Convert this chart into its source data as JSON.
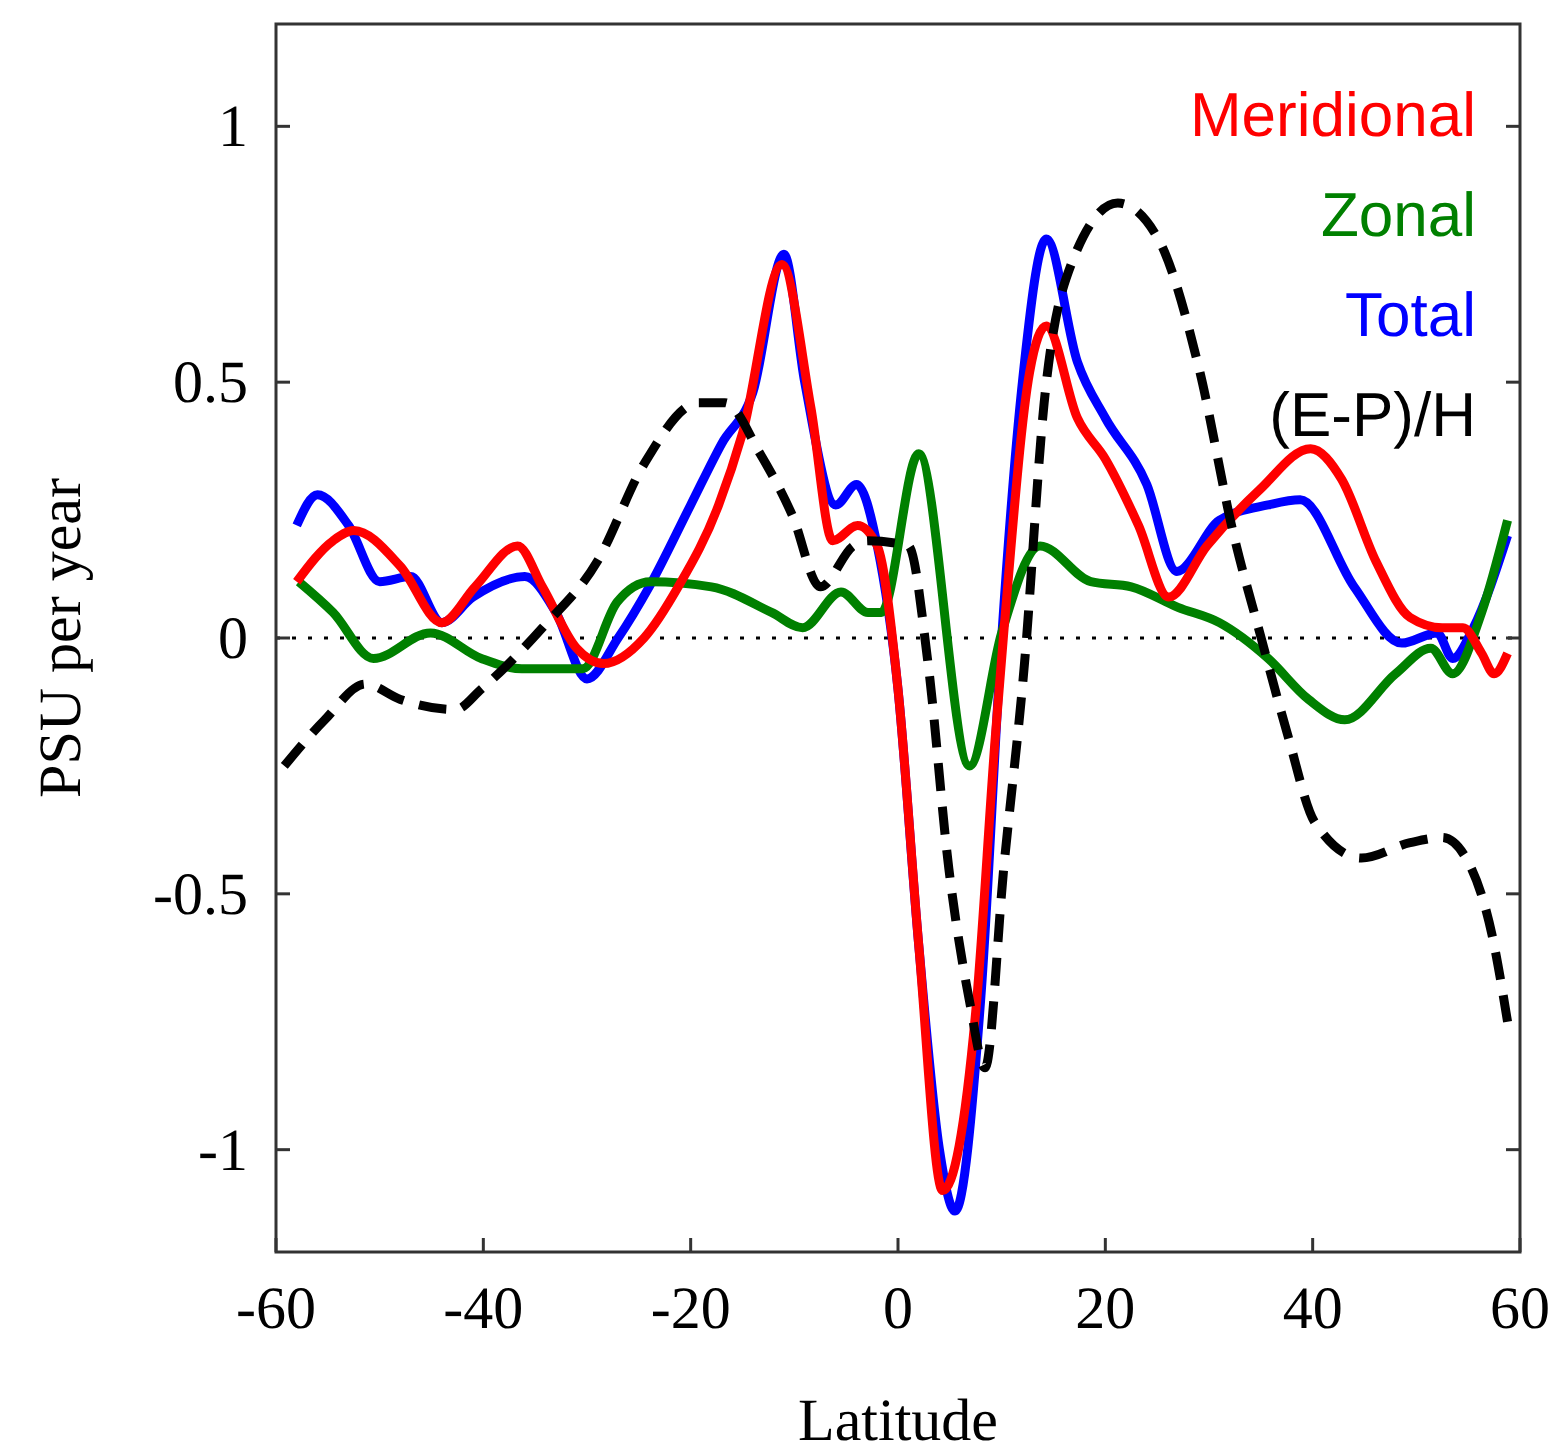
{
  "chart_data": {
    "type": "line",
    "xlabel": "Latitude",
    "ylabel": "PSU per year",
    "xlim": [
      -60,
      60
    ],
    "ylim": [
      -1.2,
      1.2
    ],
    "xticks": [
      -60,
      -40,
      -20,
      0,
      20,
      40,
      60
    ],
    "yticks": [
      -1,
      -0.5,
      0,
      0.5,
      1
    ],
    "legend": "top right",
    "grid": false,
    "ref_lines": [
      {
        "axis": "y",
        "value": 0,
        "color": "#000000",
        "line_style": "dotted"
      }
    ],
    "series": [
      {
        "name": "Meridional",
        "color": "#ff0000",
        "line_style": "solid",
        "x": [
          -58,
          -54.5,
          -52.5,
          -48,
          -44,
          -40.8,
          -36.7,
          -34.3,
          -31,
          -28.4,
          -24.5,
          -21.2,
          -17.3,
          -15,
          -11.2,
          -8.4,
          -6.3,
          -3.9,
          -2,
          0,
          2,
          4.3,
          7.5,
          9.4,
          10.2,
          12.7,
          14.3,
          17.3,
          20,
          23.2,
          26.1,
          29.8,
          34.9,
          39.8,
          42.8,
          46.1,
          49.4,
          52.5,
          54.5,
          56.3,
          57.5,
          58.8
        ],
        "values": [
          0.11,
          0.19,
          0.21,
          0.14,
          0.03,
          0.1,
          0.18,
          0.1,
          -0.02,
          -0.05,
          0,
          0.1,
          0.26,
          0.4,
          0.73,
          0.45,
          0.19,
          0.22,
          0.18,
          -0.1,
          -0.6,
          -1.08,
          -0.73,
          -0.19,
          0.01,
          0.52,
          0.61,
          0.43,
          0.35,
          0.22,
          0.08,
          0.18,
          0.29,
          0.37,
          0.31,
          0.15,
          0.04,
          0.02,
          0.02,
          -0.03,
          -0.07,
          -0.03
        ]
      },
      {
        "name": "Zonal",
        "color": "#008000",
        "line_style": "solid",
        "x": [
          -57.8,
          -54.5,
          -50.6,
          -45.1,
          -40.2,
          -36.3,
          -30.4,
          -27.1,
          -23.9,
          -18,
          -12.2,
          -9.2,
          -5.5,
          -2.9,
          -1.6,
          2,
          6.9,
          10,
          13.7,
          18.6,
          22.5,
          27,
          31,
          35.7,
          39.6,
          43.1,
          48,
          51.4,
          53.5,
          56.3,
          58.8
        ],
        "values": [
          0.11,
          0.05,
          -0.04,
          0.01,
          -0.04,
          -0.06,
          -0.06,
          0.07,
          0.11,
          0.1,
          0.05,
          0.02,
          0.09,
          0.05,
          0.05,
          0.36,
          -0.25,
          0.01,
          0.18,
          0.11,
          0.1,
          0.06,
          0.03,
          -0.04,
          -0.12,
          -0.16,
          -0.07,
          -0.02,
          -0.07,
          0.05,
          0.23
        ]
      },
      {
        "name": "Total",
        "color": "#0000ff",
        "line_style": "solid",
        "x": [
          -58,
          -56,
          -53,
          -50,
          -47,
          -44,
          -41,
          -36,
          -33,
          -30,
          -27,
          -24,
          -20,
          -17,
          -14,
          -11,
          -9,
          -6,
          -4,
          -2,
          0,
          2,
          4,
          5.5,
          8,
          10,
          12,
          14.3,
          17.3,
          20,
          24,
          26.9,
          31,
          35.7,
          38.8,
          44,
          48.6,
          52,
          53.5,
          55.5,
          58.8
        ],
        "values": [
          0.22,
          0.28,
          0.22,
          0.11,
          0.12,
          0.03,
          0.08,
          0.12,
          0.05,
          -0.08,
          0,
          0.1,
          0.26,
          0.38,
          0.48,
          0.75,
          0.5,
          0.26,
          0.3,
          0.18,
          -0.1,
          -0.6,
          -1,
          -1.12,
          -0.7,
          0,
          0.5,
          0.78,
          0.54,
          0.43,
          0.3,
          0.13,
          0.23,
          0.26,
          0.27,
          0.1,
          -0.01,
          0.01,
          -0.04,
          0.02,
          0.2
        ]
      },
      {
        "name": "(E-P)/H",
        "color": "#000000",
        "line_style": "dashed",
        "x": [
          -59.2,
          -55.3,
          -51.4,
          -48,
          -42.7,
          -40.2,
          -34.3,
          -29,
          -24.5,
          -19.2,
          -16.7,
          -13.3,
          -10.2,
          -7.5,
          -4.3,
          -2.9,
          1,
          2.9,
          4.9,
          6.9,
          8.4,
          10.2,
          12.2,
          14.1,
          16.7,
          21.2,
          25.1,
          29,
          32.4,
          34.9,
          37.6,
          40.2,
          44.7,
          49.4,
          52.5,
          55.3,
          57.3,
          58.8
        ],
        "values": [
          -0.25,
          -0.16,
          -0.09,
          -0.12,
          -0.14,
          -0.1,
          0.02,
          0.15,
          0.34,
          0.46,
          0.46,
          0.36,
          0.24,
          0.1,
          0.18,
          0.19,
          0.18,
          -0.05,
          -0.45,
          -0.71,
          -0.84,
          -0.45,
          -0.05,
          0.46,
          0.73,
          0.85,
          0.78,
          0.53,
          0.2,
          0.01,
          -0.19,
          -0.36,
          -0.43,
          -0.4,
          -0.39,
          -0.45,
          -0.58,
          -0.75
        ]
      }
    ]
  }
}
